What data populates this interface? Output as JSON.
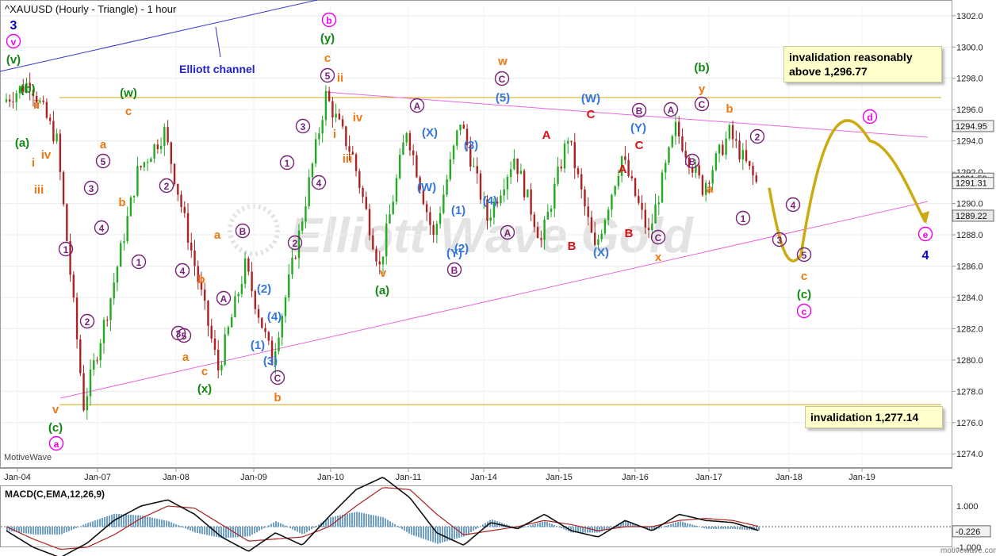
{
  "chart_title": "^XAUUSD (Hourly - Triangle) - 1 hour",
  "watermark": "Elliott Wave Gold",
  "brand_left": "MotiveWave",
  "brand_right": "motivewave.com",
  "channel_label": "Elliott channel",
  "notes": {
    "upper": [
      "invalidation reasonably",
      "above 1,296.77"
    ],
    "lower": "invalidation 1,277.14"
  },
  "chart_data": [
    {
      "type": "line",
      "title": "^XAUUSD (Hourly - Triangle) - 1 hour",
      "x_ticks": [
        "Jan-04",
        "Jan-07",
        "Jan-08",
        "Jan-09",
        "Jan-10",
        "Jan-11",
        "Jan-14",
        "Jan-15",
        "Jan-16",
        "Jan-17",
        "Jan-18",
        "Jan-19"
      ],
      "y_ticks": [
        1274.0,
        1276.0,
        1278.0,
        1280.0,
        1282.0,
        1284.0,
        1286.0,
        1288.0,
        1290.0,
        1292.0,
        1294.0,
        1296.0,
        1298.0,
        1300.0,
        1302.0
      ],
      "ylim": [
        1273.2,
        1302.6
      ],
      "price_tags": [
        "1294.95",
        "1291.59",
        "1291.31",
        "1289.22"
      ],
      "series": [
        {
          "x": [
            "Jan-04",
            "Jan-04",
            "Jan-04",
            "Jan-04",
            "Jan-07",
            "Jan-07",
            "Jan-07",
            "Jan-08",
            "Jan-08",
            "Jan-09",
            "Jan-09",
            "Jan-09",
            "Jan-10",
            "Jan-10",
            "Jan-11",
            "Jan-11",
            "Jan-11",
            "Jan-14",
            "Jan-14",
            "Jan-14",
            "Jan-15",
            "Jan-15",
            "Jan-15",
            "Jan-16",
            "Jan-16",
            "Jan-16",
            "Jan-17",
            "Jan-17",
            "Jan-17"
          ],
          "values": [
            1296.5,
            1297.8,
            1294.0,
            1277.1,
            1284.0,
            1292.0,
            1294.6,
            1287.0,
            1279.4,
            1286.0,
            1280.0,
            1288.0,
            1296.9,
            1293.0,
            1285.9,
            1294.8,
            1287.8,
            1295.3,
            1289.0,
            1293.0,
            1287.6,
            1294.3,
            1287.0,
            1293.0,
            1288.0,
            1294.8,
            1291.0,
            1294.5,
            1291.3
          ]
        }
      ],
      "projection": [
        {
          "x": "Jan-17",
          "y": 1291.3
        },
        {
          "x": "Jan-18",
          "y": 1287.2
        },
        {
          "x": "Jan-19",
          "y": 1294.0
        },
        {
          "x": "Jan-19",
          "y": 1288.4
        }
      ],
      "horizontal_lines": [
        1296.77,
        1277.14
      ],
      "triangle_lines": [
        {
          "from": {
            "x": "Jan-10",
            "y": 1296.8
          },
          "to": {
            "x": "Jan-19",
            "y": 1294.0
          }
        },
        {
          "from": {
            "x": "Jan-04",
            "y": 1277.2
          },
          "to": {
            "x": "Jan-19",
            "y": 1288.3
          }
        }
      ]
    },
    {
      "type": "line",
      "title": "MACD(C,EMA,12,26,9)",
      "y_ticks": [
        1.0,
        -1.0
      ],
      "current_value": "-0.226",
      "series": [
        {
          "name": "MACD",
          "values": [
            -0.2,
            -1.0,
            -1.5,
            -0.8,
            0.3,
            1.0,
            1.3,
            0.6,
            -0.5,
            -1.2,
            -0.3,
            -0.9,
            0.5,
            1.8,
            2.4,
            1.4,
            -0.3,
            -0.9,
            0.2,
            -0.1,
            0.6,
            -0.2,
            -0.5,
            0.3,
            -0.2,
            0.6,
            0.3,
            0.2,
            -0.2
          ]
        },
        {
          "name": "Signal",
          "values": [
            0.0,
            -0.6,
            -1.1,
            -1.0,
            -0.4,
            0.4,
            1.0,
            0.9,
            0.1,
            -0.7,
            -0.6,
            -0.5,
            0.0,
            1.0,
            1.9,
            1.8,
            0.6,
            -0.4,
            -0.2,
            0.0,
            0.3,
            0.1,
            -0.2,
            0.0,
            0.0,
            0.3,
            0.4,
            0.3,
            0.0
          ]
        }
      ]
    }
  ],
  "wave_labels": [
    {
      "t": "3",
      "x": 17,
      "y": 37,
      "c": "#0000cc",
      "s": 16
    },
    {
      "t": "v",
      "x": 17,
      "y": 57,
      "c": "#ee00ee",
      "circle": true
    },
    {
      "t": "(v)",
      "x": 17,
      "y": 80,
      "c": "#118811"
    },
    {
      "t": "(b)",
      "x": 35,
      "y": 117,
      "c": "#118811"
    },
    {
      "t": "ii",
      "x": 46,
      "y": 137,
      "c": "#ee7711"
    },
    {
      "t": "(a)",
      "x": 28,
      "y": 185,
      "c": "#118811"
    },
    {
      "t": "i",
      "x": 42,
      "y": 210,
      "c": "#ee7711"
    },
    {
      "t": "iv",
      "x": 58,
      "y": 200,
      "c": "#ee7711"
    },
    {
      "t": "iii",
      "x": 49,
      "y": 244,
      "c": "#ee7711"
    },
    {
      "t": "1",
      "x": 83,
      "y": 319,
      "c": "#772277",
      "circle": true
    },
    {
      "t": "2",
      "x": 110,
      "y": 410,
      "c": "#772277",
      "circle": true
    },
    {
      "t": "3",
      "x": 115,
      "y": 242,
      "c": "#772277",
      "circle": true
    },
    {
      "t": "4",
      "x": 128,
      "y": 292,
      "c": "#772277",
      "circle": true
    },
    {
      "t": "5",
      "x": 130,
      "y": 208,
      "c": "#772277",
      "circle": true
    },
    {
      "t": "a",
      "x": 130,
      "y": 187,
      "c": "#ee7711"
    },
    {
      "t": "b",
      "x": 154,
      "y": 260,
      "c": "#ee7711"
    },
    {
      "t": "(w)",
      "x": 162,
      "y": 122,
      "c": "#118811"
    },
    {
      "t": "c",
      "x": 162,
      "y": 145,
      "c": "#ee7711"
    },
    {
      "t": "1",
      "x": 175,
      "y": 335,
      "c": "#772277",
      "circle": true
    },
    {
      "t": "2",
      "x": 210,
      "y": 239,
      "c": "#772277",
      "circle": true
    },
    {
      "t": "4",
      "x": 230,
      "y": 346,
      "c": "#772277",
      "circle": true
    },
    {
      "t": "3",
      "x": 225,
      "y": 425,
      "c": "#772277",
      "circle": true
    },
    {
      "t": "5",
      "x": 232,
      "y": 428,
      "c": "#772277",
      "circle": true
    },
    {
      "t": "a",
      "x": 234,
      "y": 455,
      "c": "#ee7711"
    },
    {
      "t": "b",
      "x": 254,
      "y": 357,
      "c": "#ee7711"
    },
    {
      "t": "c",
      "x": 258,
      "y": 473,
      "c": "#ee7711"
    },
    {
      "t": "(x)",
      "x": 258,
      "y": 495,
      "c": "#118811"
    },
    {
      "t": "a",
      "x": 274,
      "y": 301,
      "c": "#ee7711"
    },
    {
      "t": "A",
      "x": 282,
      "y": 381,
      "c": "#772277",
      "circle": true
    },
    {
      "t": "B",
      "x": 306,
      "y": 296,
      "c": "#772277",
      "circle": true
    },
    {
      "t": "(2)",
      "x": 333,
      "y": 369,
      "c": "#3377dd"
    },
    {
      "t": "(4)",
      "x": 346,
      "y": 404,
      "c": "#3377dd"
    },
    {
      "t": "(1)",
      "x": 325,
      "y": 440,
      "c": "#3377dd"
    },
    {
      "t": "(3)",
      "x": 341,
      "y": 460,
      "c": "#3377dd"
    },
    {
      "t": "C",
      "x": 350,
      "y": 481,
      "c": "#772277",
      "circle": true
    },
    {
      "t": "b",
      "x": 350,
      "y": 506,
      "c": "#ee7711"
    },
    {
      "t": "2",
      "x": 372,
      "y": 311,
      "c": "#772277",
      "circle": true
    },
    {
      "t": "1",
      "x": 362,
      "y": 210,
      "c": "#772277",
      "circle": true
    },
    {
      "t": "3",
      "x": 382,
      "y": 164,
      "c": "#772277",
      "circle": true
    },
    {
      "t": "4",
      "x": 402,
      "y": 235,
      "c": "#772277",
      "circle": true
    },
    {
      "t": "b",
      "x": 415,
      "y": 30,
      "c": "#ee00ee",
      "circle": true
    },
    {
      "t": "(y)",
      "x": 413,
      "y": 53,
      "c": "#118811"
    },
    {
      "t": "c",
      "x": 413,
      "y": 78,
      "c": "#ee7711"
    },
    {
      "t": "5",
      "x": 413,
      "y": 100,
      "c": "#772277",
      "circle": true
    },
    {
      "t": "ii",
      "x": 429,
      "y": 103,
      "c": "#ee7711"
    },
    {
      "t": "iv",
      "x": 451,
      "y": 153,
      "c": "#ee7711"
    },
    {
      "t": "i",
      "x": 422,
      "y": 174,
      "c": "#ee7711"
    },
    {
      "t": "iii",
      "x": 438,
      "y": 205,
      "c": "#ee7711"
    },
    {
      "t": "v",
      "x": 483,
      "y": 349,
      "c": "#ee7711"
    },
    {
      "t": "(a)",
      "x": 482,
      "y": 371,
      "c": "#118811"
    },
    {
      "t": "A",
      "x": 526,
      "y": 138,
      "c": "#772277",
      "circle": true
    },
    {
      "t": "(X)",
      "x": 542,
      "y": 172,
      "c": "#3377dd"
    },
    {
      "t": "(W)",
      "x": 538,
      "y": 241,
      "c": "#3377dd"
    },
    {
      "t": "(3)",
      "x": 594,
      "y": 188,
      "c": "#3377dd"
    },
    {
      "t": "(1)",
      "x": 578,
      "y": 270,
      "c": "#3377dd"
    },
    {
      "t": "(4)",
      "x": 618,
      "y": 258,
      "c": "#3377dd"
    },
    {
      "t": "(2)",
      "x": 582,
      "y": 318,
      "c": "#3377dd"
    },
    {
      "t": "(Y)",
      "x": 573,
      "y": 324,
      "c": "#3377dd"
    },
    {
      "t": "B",
      "x": 573,
      "y": 345,
      "c": "#772277",
      "circle": true
    },
    {
      "t": "w",
      "x": 634,
      "y": 82,
      "c": "#ee7711"
    },
    {
      "t": "C",
      "x": 633,
      "y": 104,
      "c": "#772277",
      "circle": true
    },
    {
      "t": "(5)",
      "x": 634,
      "y": 128,
      "c": "#3377dd"
    },
    {
      "t": "A",
      "x": 640,
      "y": 298,
      "c": "#772277",
      "circle": true
    },
    {
      "t": "A",
      "x": 689,
      "y": 175,
      "c": "#dd1111"
    },
    {
      "t": "B",
      "x": 721,
      "y": 315,
      "c": "#dd1111"
    },
    {
      "t": "(W)",
      "x": 745,
      "y": 129,
      "c": "#3377dd"
    },
    {
      "t": "C",
      "x": 745,
      "y": 149,
      "c": "#dd1111"
    },
    {
      "t": "(X)",
      "x": 758,
      "y": 323,
      "c": "#3377dd"
    },
    {
      "t": "B",
      "x": 806,
      "y": 144,
      "c": "#772277",
      "circle": true
    },
    {
      "t": "(Y)",
      "x": 805,
      "y": 166,
      "c": "#3377dd"
    },
    {
      "t": "C",
      "x": 806,
      "y": 188,
      "c": "#dd1111"
    },
    {
      "t": "A",
      "x": 785,
      "y": 218,
      "c": "#dd1111"
    },
    {
      "t": "B",
      "x": 793,
      "y": 299,
      "c": "#dd1111"
    },
    {
      "t": "C",
      "x": 830,
      "y": 304,
      "c": "#772277",
      "circle": true
    },
    {
      "t": "x",
      "x": 830,
      "y": 329,
      "c": "#ee7711"
    },
    {
      "t": "A",
      "x": 846,
      "y": 143,
      "c": "#772277",
      "circle": true
    },
    {
      "t": "(b)",
      "x": 885,
      "y": 90,
      "c": "#118811"
    },
    {
      "t": "y",
      "x": 885,
      "y": 117,
      "c": "#ee7711"
    },
    {
      "t": "C",
      "x": 885,
      "y": 136,
      "c": "#772277",
      "circle": true
    },
    {
      "t": "b",
      "x": 920,
      "y": 142,
      "c": "#ee7711"
    },
    {
      "t": "B",
      "x": 873,
      "y": 208,
      "c": "#772277",
      "circle": true
    },
    {
      "t": "a",
      "x": 895,
      "y": 243,
      "c": "#ee7711"
    },
    {
      "t": "2",
      "x": 955,
      "y": 177,
      "c": "#772277",
      "circle": true
    },
    {
      "t": "1",
      "x": 937,
      "y": 280,
      "c": "#772277",
      "circle": true
    },
    {
      "t": "4",
      "x": 1000,
      "y": 263,
      "c": "#772277",
      "circle": true
    },
    {
      "t": "3",
      "x": 983,
      "y": 307,
      "c": "#772277",
      "circle": true
    },
    {
      "t": "5",
      "x": 1014,
      "y": 326,
      "c": "#772277",
      "circle": true
    },
    {
      "t": "c",
      "x": 1014,
      "y": 353,
      "c": "#ee7711"
    },
    {
      "t": "(c)",
      "x": 1014,
      "y": 376,
      "c": "#118811"
    },
    {
      "t": "c",
      "x": 1014,
      "y": 397,
      "c": "#ee00ee",
      "circle": true
    },
    {
      "t": "d",
      "x": 1097,
      "y": 152,
      "c": "#ee00ee",
      "circle": true
    },
    {
      "t": "e",
      "x": 1167,
      "y": 300,
      "c": "#ee00ee",
      "circle": true
    },
    {
      "t": "4",
      "x": 1167,
      "y": 327,
      "c": "#0000cc",
      "s": 16
    },
    {
      "t": "v",
      "x": 70,
      "y": 521,
      "c": "#ee7711"
    },
    {
      "t": "(c)",
      "x": 70,
      "y": 544,
      "c": "#118811"
    },
    {
      "t": "a",
      "x": 71,
      "y": 564,
      "c": "#ee00ee",
      "circle": true
    }
  ]
}
